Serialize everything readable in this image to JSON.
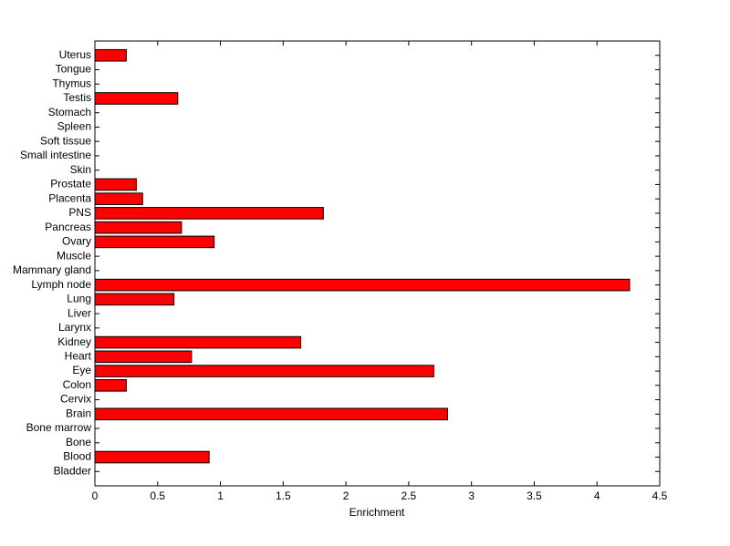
{
  "chart_data": {
    "type": "barh",
    "xlabel": "Enrichment",
    "categories": [
      "Bladder",
      "Blood",
      "Bone",
      "Bone marrow",
      "Brain",
      "Cervix",
      "Colon",
      "Eye",
      "Heart",
      "Kidney",
      "Larynx",
      "Liver",
      "Lung",
      "Lymph node",
      "Mammary gland",
      "Muscle",
      "Ovary",
      "Pancreas",
      "PNS",
      "Placenta",
      "Prostate",
      "Skin",
      "Small intestine",
      "Soft tissue",
      "Spleen",
      "Stomach",
      "Testis",
      "Thymus",
      "Tongue",
      "Uterus"
    ],
    "values": [
      0,
      0.91,
      0,
      0,
      2.81,
      0,
      0.25,
      2.7,
      0.77,
      1.64,
      0,
      0,
      0.63,
      4.26,
      0,
      0,
      0.95,
      0.69,
      1.82,
      0.38,
      0.33,
      0,
      0,
      0,
      0,
      0,
      0.66,
      0,
      0,
      0.25
    ],
    "color": "#ff0000",
    "xlim": [
      0,
      4.5
    ],
    "xticks": [
      0,
      0.5,
      1,
      1.5,
      2,
      2.5,
      3,
      3.5,
      4,
      4.5
    ]
  }
}
